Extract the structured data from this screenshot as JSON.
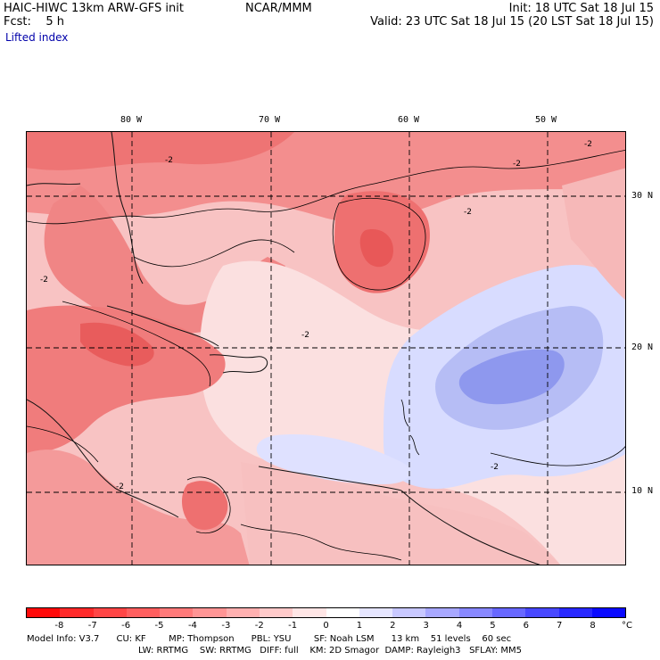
{
  "header": {
    "model": "HAIC-HIWC 13km ARW-GFS init",
    "org": "NCAR/MMM",
    "init": "Init: 18 UTC Sat 18 Jul 15",
    "fcst": "Fcst:    5 h",
    "valid": "Valid: 23 UTC Sat 18 Jul 15 (20 LST Sat 18 Jul 15)",
    "field": "Lifted index"
  },
  "map": {
    "lon_labels": [
      "80 W",
      "70 W",
      "60 W",
      "50 W"
    ],
    "lat_labels": [
      "30 N",
      "20 N",
      "10 N"
    ],
    "contour_labels": [
      "-2",
      "-2",
      "-2",
      "-2",
      "-2",
      "-2",
      "-2",
      "-2"
    ]
  },
  "colorbar": {
    "ticks": [
      "-8",
      "-7",
      "-6",
      "-5",
      "-4",
      "-3",
      "-2",
      "-1",
      "0",
      "1",
      "2",
      "3",
      "4",
      "5",
      "6",
      "7",
      "8"
    ],
    "unit": "°C",
    "colors": [
      "#ff0a0a",
      "#ff2a2a",
      "#ff4646",
      "#ff5f5f",
      "#ff7a7a",
      "#ff9595",
      "#ffb0b0",
      "#ffcaca",
      "#ffe6e6",
      "#ffffff",
      "#e6e6ff",
      "#c8c8ff",
      "#a8a8ff",
      "#8888ff",
      "#6868ff",
      "#4848ff",
      "#2828ff",
      "#0a0aff"
    ]
  },
  "footer": {
    "line1": "Model Info: V3.7      CU: KF        MP: Thompson      PBL: YSU        SF: Noah LSM      13 km    51 levels    60 sec",
    "line2": "LW: RRTMG    SW: RRTMG   DIFF: full    KM: 2D Smagor  DAMP: Rayleigh3   SFLAY: MM5"
  }
}
